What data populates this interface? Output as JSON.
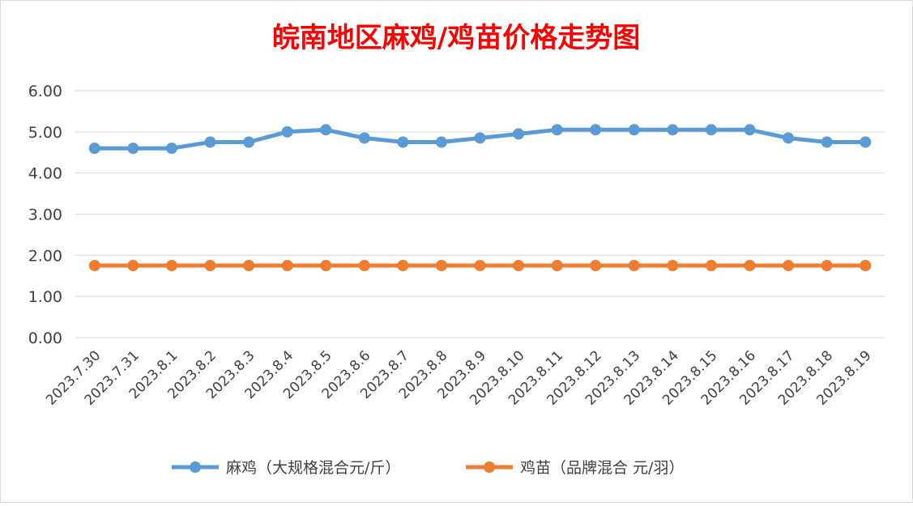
{
  "chart_data": {
    "type": "line",
    "title": "皖南地区麻鸡/鸡苗价格走势图",
    "xlabel": "",
    "ylabel": "",
    "categories": [
      "2023.7.30",
      "2023.7.31",
      "2023.8.1",
      "2023.8.2",
      "2023.8.3",
      "2023.8.4",
      "2023.8.5",
      "2023.8.6",
      "2023.8.7",
      "2023.8.8",
      "2023.8.9",
      "2023.8.10",
      "2023.8.11",
      "2023.8.12",
      "2023.8.13",
      "2023.8.14",
      "2023.8.15",
      "2023.8.16",
      "2023.8.17",
      "2023.8.18",
      "2023.8.19"
    ],
    "ylim": [
      0,
      6
    ],
    "yticks": [
      "0.00",
      "1.00",
      "2.00",
      "3.00",
      "4.00",
      "5.00",
      "6.00"
    ],
    "grid": true,
    "legend": "bottom",
    "series": [
      {
        "name": "麻鸡（大规格混合元/斤）",
        "color": "#5b9bd5",
        "values": [
          4.6,
          4.6,
          4.6,
          4.75,
          4.75,
          5.0,
          5.05,
          4.85,
          4.75,
          4.75,
          4.85,
          4.95,
          5.05,
          5.05,
          5.05,
          5.05,
          5.05,
          5.05,
          4.85,
          4.75,
          4.75
        ]
      },
      {
        "name": "鸡苗（品牌混合 元/羽）",
        "color": "#ed7d31",
        "values": [
          1.75,
          1.75,
          1.75,
          1.75,
          1.75,
          1.75,
          1.75,
          1.75,
          1.75,
          1.75,
          1.75,
          1.75,
          1.75,
          1.75,
          1.75,
          1.75,
          1.75,
          1.75,
          1.75,
          1.75,
          1.75
        ]
      }
    ]
  }
}
